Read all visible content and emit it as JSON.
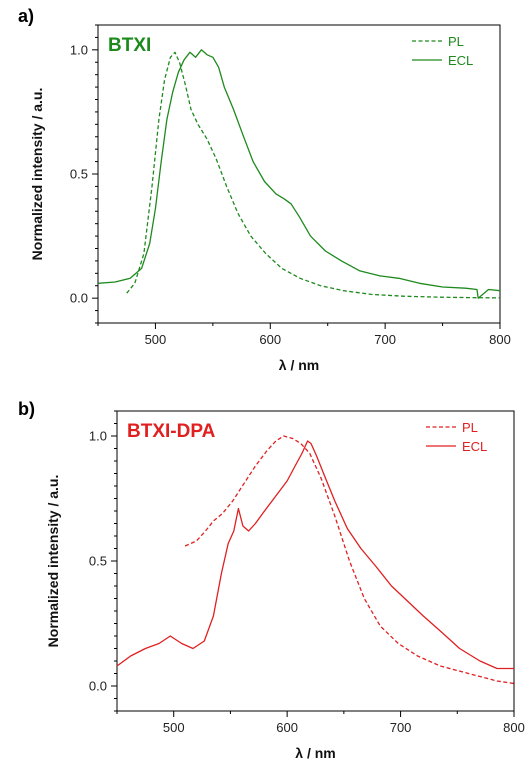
{
  "chart_data": [
    {
      "panel_label": "a)",
      "type": "line",
      "title": "BTXI",
      "xlabel": "λ / nm",
      "ylabel": "Normalized intensity / a.u.",
      "xlim": [
        450,
        800
      ],
      "ylim": [
        -0.1,
        1.1
      ],
      "xticks": [
        500,
        600,
        700,
        800
      ],
      "yticks": [
        0.0,
        0.5,
        1.0
      ],
      "ytick_labels": [
        "0.0",
        "0.5",
        "1.0"
      ],
      "color": "#1e8a1e",
      "legend_position": "top-right",
      "series": [
        {
          "name": "PL",
          "style": "dashed",
          "x": [
            475,
            482,
            490,
            497,
            503,
            508,
            513,
            517,
            521,
            526,
            531,
            537,
            545,
            553,
            562,
            572,
            583,
            596,
            610,
            626,
            644,
            664,
            688,
            716,
            748,
            780,
            800
          ],
          "y": [
            0.02,
            0.06,
            0.18,
            0.45,
            0.72,
            0.88,
            0.97,
            0.99,
            0.95,
            0.86,
            0.76,
            0.7,
            0.64,
            0.56,
            0.45,
            0.34,
            0.25,
            0.18,
            0.12,
            0.08,
            0.05,
            0.03,
            0.015,
            0.008,
            0.004,
            0.002,
            0.001
          ]
        },
        {
          "name": "ECL",
          "style": "solid",
          "x": [
            450,
            465,
            478,
            488,
            495,
            500,
            505,
            510,
            515,
            520,
            525,
            530,
            535,
            540,
            545,
            550,
            555,
            560,
            568,
            576,
            585,
            595,
            605,
            612,
            618,
            625,
            635,
            648,
            662,
            678,
            695,
            712,
            730,
            750,
            770,
            780,
            781,
            790,
            800
          ],
          "y": [
            0.06,
            0.065,
            0.08,
            0.12,
            0.22,
            0.36,
            0.55,
            0.72,
            0.83,
            0.91,
            0.96,
            0.99,
            0.97,
            1.0,
            0.98,
            0.97,
            0.93,
            0.85,
            0.76,
            0.66,
            0.55,
            0.47,
            0.42,
            0.4,
            0.38,
            0.33,
            0.25,
            0.19,
            0.15,
            0.11,
            0.09,
            0.08,
            0.06,
            0.045,
            0.04,
            0.035,
            0.0,
            0.035,
            0.03
          ]
        }
      ]
    },
    {
      "panel_label": "b)",
      "type": "line",
      "title": "BTXI-DPA",
      "xlabel": "λ / nm",
      "ylabel": "Normalized intensity / a.u.",
      "xlim": [
        450,
        800
      ],
      "ylim": [
        -0.1,
        1.1
      ],
      "xticks": [
        500,
        600,
        700,
        800
      ],
      "yticks": [
        0.0,
        0.5,
        1.0
      ],
      "ytick_labels": [
        "0.0",
        "0.5",
        "1.0"
      ],
      "color": "#e02020",
      "legend_position": "top-right",
      "series": [
        {
          "name": "PL",
          "style": "dashed",
          "x": [
            510,
            520,
            528,
            535,
            543,
            552,
            562,
            572,
            582,
            590,
            597,
            605,
            612,
            620,
            630,
            642,
            655,
            668,
            682,
            698,
            715,
            735,
            760,
            785,
            800
          ],
          "y": [
            0.56,
            0.58,
            0.62,
            0.66,
            0.69,
            0.74,
            0.81,
            0.88,
            0.94,
            0.98,
            1.0,
            0.99,
            0.97,
            0.93,
            0.83,
            0.68,
            0.5,
            0.35,
            0.24,
            0.17,
            0.12,
            0.08,
            0.05,
            0.02,
            0.01
          ]
        },
        {
          "name": "ECL",
          "style": "solid",
          "x": [
            450,
            462,
            475,
            487,
            497,
            507,
            517,
            527,
            535,
            542,
            548,
            553,
            557,
            561,
            566,
            572,
            580,
            590,
            600,
            607,
            613,
            618,
            621,
            626,
            633,
            642,
            653,
            665,
            678,
            692,
            706,
            720,
            735,
            752,
            770,
            785,
            800
          ],
          "y": [
            0.08,
            0.12,
            0.15,
            0.17,
            0.2,
            0.17,
            0.15,
            0.18,
            0.28,
            0.45,
            0.57,
            0.62,
            0.71,
            0.64,
            0.62,
            0.65,
            0.7,
            0.76,
            0.82,
            0.88,
            0.93,
            0.98,
            0.97,
            0.92,
            0.84,
            0.74,
            0.63,
            0.55,
            0.48,
            0.4,
            0.34,
            0.28,
            0.22,
            0.15,
            0.1,
            0.07,
            0.07
          ]
        }
      ]
    }
  ]
}
